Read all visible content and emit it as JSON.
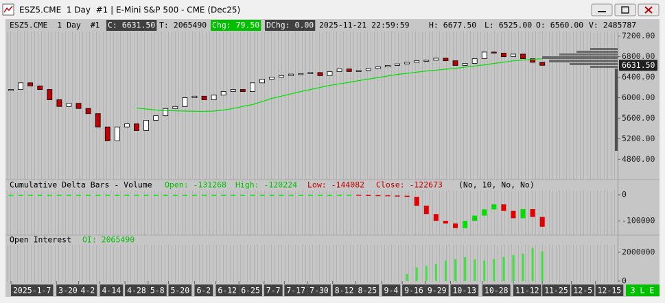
{
  "window": {
    "title": "ESZ5.CME  1 Day  #1 | E-Mini S&P 500 - CME (Dec25)"
  },
  "header": [
    "ESZ5.CME  1 Day  #1",
    "C: 6631.50",
    "T: 2065490",
    "Chg: 79.50",
    "DChg: 0.00",
    "2025-11-21 22:59:59",
    "H: 6677.50",
    "L: 6525.00",
    "O: 6560.00",
    "V: 2485787"
  ],
  "status": "3 L E",
  "chart_data": [
    {
      "type": "candlestick",
      "values": [
        6160,
        6290,
        6230,
        6160,
        5960,
        5830,
        5890,
        5790,
        5690,
        5430,
        5160,
        5430,
        5490,
        5360,
        5560,
        5650,
        5790,
        5830,
        6000,
        6030,
        5960,
        6050,
        6120,
        6160,
        6120,
        6290,
        6360,
        6400,
        6430,
        6460,
        6470,
        6490,
        6430,
        6510,
        6560,
        6510,
        6530,
        6570,
        6600,
        6630,
        6660,
        6690,
        6720,
        6730,
        6770,
        6720,
        6630,
        6670,
        6760,
        6890,
        6870,
        6800,
        6850,
        6760,
        6690,
        6631.5
      ],
      "up_color": "#ffffff",
      "down_color": "#c00000",
      "outline": "#000000",
      "line": {
        "color": "#00e000",
        "values": [
          null,
          null,
          null,
          null,
          null,
          null,
          null,
          null,
          null,
          null,
          null,
          null,
          null,
          5800,
          5780,
          5760,
          5750,
          5745,
          5740,
          5735,
          5733,
          5740,
          5760,
          5790,
          5830,
          5867,
          5925,
          5987,
          6030,
          6075,
          6120,
          6160,
          6200,
          6240,
          6270,
          6300,
          6333,
          6363,
          6393,
          6423,
          6453,
          6475,
          6498,
          6520,
          6538,
          6555,
          6573,
          6595,
          6618,
          6640,
          6667,
          6693,
          6720,
          6733,
          6747,
          6760
        ]
      },
      "last_price": {
        "value": 6631.5,
        "label": "6631.50"
      },
      "xlim": [
        0,
        62.8
      ],
      "xticks": [
        {
          "value": 0,
          "label": "2025-1-7"
        },
        {
          "value": 4.7,
          "label": "3-20"
        },
        {
          "value": 7,
          "label": "4-2"
        },
        {
          "value": 9.2,
          "label": "4-14"
        },
        {
          "value": 11.8,
          "label": "4-28"
        },
        {
          "value": 14.2,
          "label": "5-8"
        },
        {
          "value": 16.3,
          "label": "5-20"
        },
        {
          "value": 19,
          "label": "6-2"
        },
        {
          "value": 21.2,
          "label": "6-12"
        },
        {
          "value": 23.6,
          "label": "6-25"
        },
        {
          "value": 26.2,
          "label": "7-7"
        },
        {
          "value": 28.3,
          "label": "7-17"
        },
        {
          "value": 30.7,
          "label": "7-30"
        },
        {
          "value": 33.3,
          "label": "8-12"
        },
        {
          "value": 35.7,
          "label": "8-25"
        },
        {
          "value": 38.4,
          "label": "9-4"
        },
        {
          "value": 40.5,
          "label": "9-16"
        },
        {
          "value": 42.9,
          "label": "9-29"
        },
        {
          "value": 45.5,
          "label": "10-13"
        },
        {
          "value": 48.8,
          "label": "10-28"
        },
        {
          "value": 52,
          "label": "11-12"
        },
        {
          "value": 55,
          "label": "11-25"
        },
        {
          "value": 58,
          "label": "12-5"
        },
        {
          "value": 60.5,
          "label": "12-15"
        }
      ],
      "ylim": [
        4430,
        7290
      ],
      "yticks": [
        {
          "value": 7200,
          "label": "7200.00"
        },
        {
          "value": 6800,
          "label": "6800.00"
        },
        {
          "value": 6400,
          "label": "6400.00"
        },
        {
          "value": 6000,
          "label": "6000.00"
        },
        {
          "value": 5600,
          "label": "5600.00"
        },
        {
          "value": 5200,
          "label": "5200.00"
        },
        {
          "value": 4800,
          "label": "4800.00"
        }
      ]
    },
    {
      "type": "candlestick",
      "title": "Cumulative Delta Bars - Volume",
      "stats": [
        "Open: -131268",
        "High: -120224",
        "Low: -144082",
        "Close: -122673"
      ],
      "params": "(No, 10, No, No)",
      "values": [
        0,
        0,
        0,
        0,
        0,
        0,
        0,
        0,
        0,
        0,
        0,
        0,
        0,
        0,
        0,
        0,
        0,
        0,
        0,
        0,
        0,
        0,
        0,
        0,
        0,
        0,
        0,
        0,
        0,
        0,
        0,
        0,
        0,
        0,
        0,
        0,
        -1000,
        -1500,
        -2000,
        -3000,
        -4000,
        -8000,
        -42000,
        -74000,
        -100000,
        -110000,
        -128000,
        -100000,
        -80000,
        -56000,
        -37000,
        -62000,
        -90000,
        -55000,
        -85000,
        -122673
      ],
      "up_color": "#00e000",
      "down_color": "#e00000",
      "ylim": [
        -160000,
        58000
      ],
      "yticks": [
        0,
        -100000
      ]
    },
    {
      "type": "bar",
      "title": "Open Interest",
      "stat": "OI: 2065490",
      "values": [
        null,
        null,
        null,
        null,
        null,
        null,
        null,
        null,
        null,
        null,
        null,
        null,
        null,
        null,
        null,
        null,
        null,
        null,
        null,
        null,
        null,
        null,
        null,
        null,
        null,
        null,
        null,
        null,
        null,
        null,
        null,
        null,
        null,
        null,
        null,
        null,
        null,
        null,
        null,
        null,
        null,
        480000,
        950000,
        1050000,
        1190000,
        1430000,
        1520000,
        1670000,
        1520000,
        1430000,
        1520000,
        1670000,
        1810000,
        1900000,
        2290000,
        2065490
      ],
      "color": "#40e040",
      "ylim": [
        0,
        3000000
      ],
      "yticks": [
        0,
        2000000
      ]
    }
  ]
}
